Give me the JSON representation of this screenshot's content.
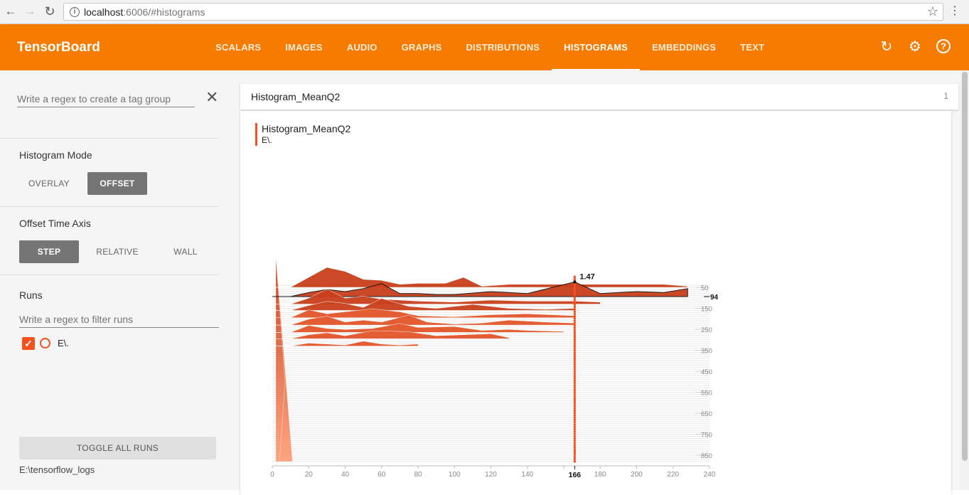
{
  "browser": {
    "url_host": "localhost",
    "url_rest": ":6006/#histograms"
  },
  "toolbar": {
    "brand": "TensorBoard",
    "tabs": [
      {
        "label": "SCALARS",
        "active": false
      },
      {
        "label": "IMAGES",
        "active": false
      },
      {
        "label": "AUDIO",
        "active": false
      },
      {
        "label": "GRAPHS",
        "active": false
      },
      {
        "label": "DISTRIBUTIONS",
        "active": false
      },
      {
        "label": "HISTOGRAMS",
        "active": true
      },
      {
        "label": "EMBEDDINGS",
        "active": false
      },
      {
        "label": "TEXT",
        "active": false
      }
    ]
  },
  "sidebar": {
    "tag_group_placeholder": "Write a regex to create a tag group",
    "histogram_mode": {
      "title": "Histogram Mode",
      "options": [
        "OVERLAY",
        "OFFSET"
      ],
      "selected": "OFFSET"
    },
    "offset_time_axis": {
      "title": "Offset Time Axis",
      "options": [
        "STEP",
        "RELATIVE",
        "WALL"
      ],
      "selected": "STEP"
    },
    "runs": {
      "title": "Runs",
      "filter_placeholder": "Write a regex to filter runs",
      "items": [
        {
          "name": "E\\.",
          "checked": true
        }
      ]
    },
    "toggle_label": "TOGGLE ALL RUNS",
    "logdir": "E:\\tensorflow_logs"
  },
  "card": {
    "title": "Histogram_MeanQ2",
    "count": "1",
    "chart_title": "Histogram_MeanQ2",
    "chart_run": "E\\."
  },
  "colors": {
    "accent": "#f57c00",
    "run": "#f4511e",
    "hist_dark": "#c9401c",
    "hist_light": "#ffa07a"
  },
  "chart_data": {
    "type": "histogram-offset",
    "x_ticks": [
      0,
      20,
      40,
      60,
      80,
      100,
      120,
      140,
      160,
      180,
      200,
      220,
      240
    ],
    "y_ticks": [
      50,
      150,
      250,
      350,
      450,
      550,
      650,
      750,
      850
    ],
    "xlim": [
      0,
      240
    ],
    "ylim": [
      0,
      900
    ],
    "hover": {
      "x": 166,
      "step": 94,
      "value": "1.47"
    },
    "series": [
      {
        "step": 94,
        "points": [
          [
            0,
            0
          ],
          [
            10,
            0
          ],
          [
            20,
            0.4
          ],
          [
            30,
            0.7
          ],
          [
            40,
            0.5
          ],
          [
            50,
            0.8
          ],
          [
            60,
            1.3
          ],
          [
            70,
            0.3
          ],
          [
            80,
            0.3
          ],
          [
            90,
            0.2
          ],
          [
            100,
            0.2
          ],
          [
            120,
            0.5
          ],
          [
            140,
            0.3
          ],
          [
            166,
            1.47
          ],
          [
            180,
            0.3
          ],
          [
            200,
            0.5
          ],
          [
            215,
            0.4
          ],
          [
            228,
            0.8
          ]
        ]
      },
      {
        "step": 50,
        "points": [
          [
            0,
            0
          ],
          [
            10,
            0
          ],
          [
            20,
            1.0
          ],
          [
            30,
            2.0
          ],
          [
            40,
            1.6
          ],
          [
            50,
            0.8
          ],
          [
            60,
            0.7
          ],
          [
            70,
            0.3
          ],
          [
            80,
            0.4
          ],
          [
            95,
            0.4
          ],
          [
            105,
            1.0
          ],
          [
            115,
            0.1
          ],
          [
            130,
            0.3
          ],
          [
            166,
            0.3
          ],
          [
            195,
            0.3
          ],
          [
            215,
            0.3
          ],
          [
            228,
            0.1
          ]
        ]
      },
      {
        "step": 130,
        "points": [
          [
            0,
            0
          ],
          [
            10,
            0
          ],
          [
            20,
            0.6
          ],
          [
            30,
            1.5
          ],
          [
            40,
            0.6
          ],
          [
            50,
            0.8
          ],
          [
            60,
            0.5
          ],
          [
            80,
            0.3
          ],
          [
            100,
            0.2
          ],
          [
            120,
            0.4
          ],
          [
            140,
            0.3
          ],
          [
            166,
            0.3
          ],
          [
            180,
            0.2
          ]
        ]
      },
      {
        "step": 160,
        "points": [
          [
            0,
            0
          ],
          [
            10,
            0
          ],
          [
            20,
            0.5
          ],
          [
            30,
            0.9
          ],
          [
            40,
            0.7
          ],
          [
            50,
            0.3
          ],
          [
            60,
            1.2
          ],
          [
            75,
            0.4
          ],
          [
            90,
            0.2
          ],
          [
            110,
            0.6
          ],
          [
            130,
            0.2
          ],
          [
            150,
            0.1
          ],
          [
            166,
            0.2
          ]
        ]
      },
      {
        "step": 195,
        "points": [
          [
            0,
            0
          ],
          [
            10,
            0
          ],
          [
            20,
            0.8
          ],
          [
            30,
            0.4
          ],
          [
            40,
            0.6
          ],
          [
            55,
            0.9
          ],
          [
            70,
            0.6
          ],
          [
            80,
            0.2
          ],
          [
            100,
            0.1
          ],
          [
            120,
            0.3
          ],
          [
            140,
            0.4
          ],
          [
            166,
            0.2
          ]
        ]
      },
      {
        "step": 230,
        "points": [
          [
            0,
            0
          ],
          [
            10,
            0
          ],
          [
            20,
            0.6
          ],
          [
            30,
            0.9
          ],
          [
            40,
            0.3
          ],
          [
            50,
            0.5
          ],
          [
            60,
            0.3
          ],
          [
            75,
            1.0
          ],
          [
            85,
            0.3
          ],
          [
            100,
            0.1
          ],
          [
            115,
            0.2
          ],
          [
            130,
            0.5
          ],
          [
            150,
            0.3
          ],
          [
            166,
            0.2
          ]
        ]
      },
      {
        "step": 265,
        "points": [
          [
            0,
            0
          ],
          [
            10,
            0
          ],
          [
            20,
            0.7
          ],
          [
            30,
            0.4
          ],
          [
            40,
            0.3
          ],
          [
            55,
            0.4
          ],
          [
            70,
            0.9
          ],
          [
            80,
            0.5
          ],
          [
            100,
            0.6
          ],
          [
            115,
            0.2
          ],
          [
            130,
            0.3
          ],
          [
            140,
            0.2
          ],
          [
            160,
            0.1
          ]
        ]
      },
      {
        "step": 295,
        "points": [
          [
            0,
            0
          ],
          [
            10,
            0
          ],
          [
            20,
            0.4
          ],
          [
            30,
            0.6
          ],
          [
            40,
            0.3
          ],
          [
            55,
            0.8
          ],
          [
            75,
            0.7
          ],
          [
            90,
            0.3
          ],
          [
            105,
            0.4
          ],
          [
            120,
            0.5
          ],
          [
            130,
            0.1
          ]
        ]
      },
      {
        "step": 330,
        "points": [
          [
            0,
            0
          ],
          [
            10,
            0
          ],
          [
            20,
            0.3
          ],
          [
            30,
            0.2
          ],
          [
            40,
            0.1
          ],
          [
            50,
            0.5
          ],
          [
            60,
            0.2
          ],
          [
            70,
            0.1
          ],
          [
            80,
            0.2
          ]
        ]
      }
    ]
  }
}
